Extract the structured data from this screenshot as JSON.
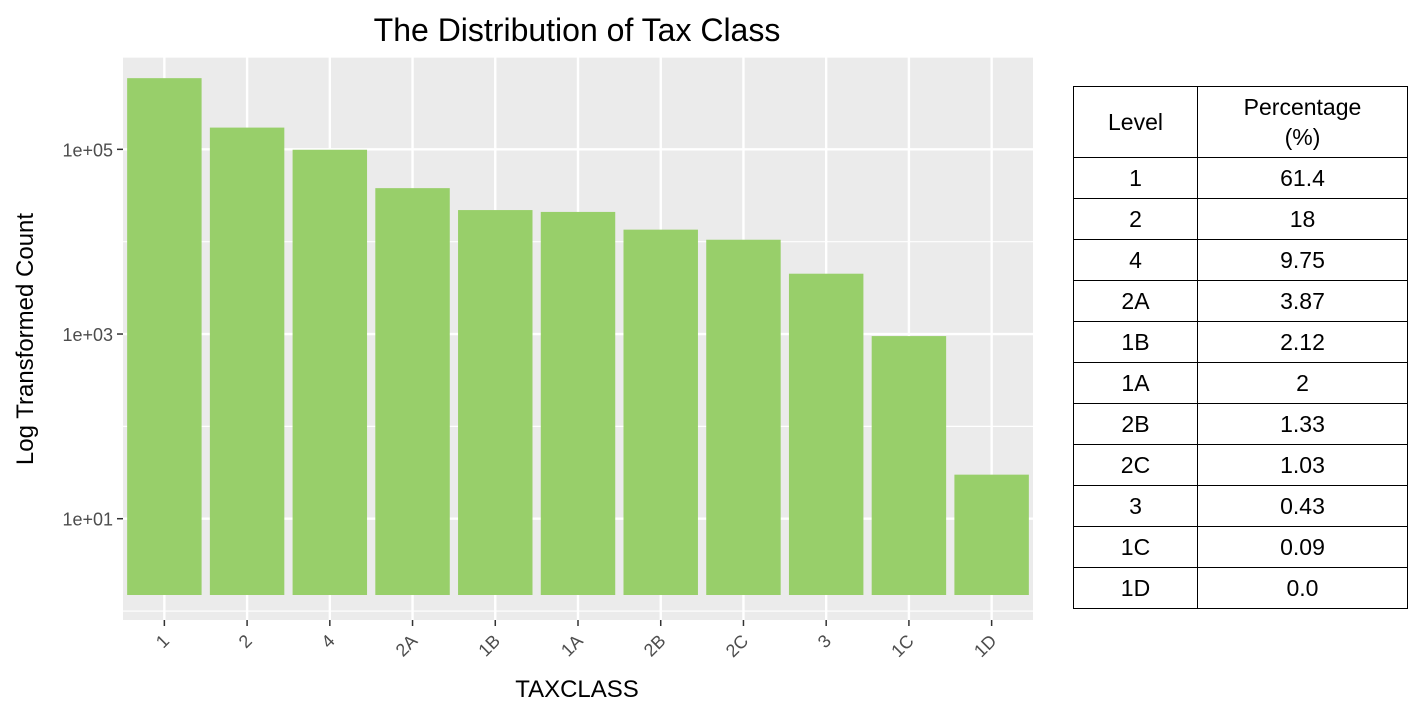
{
  "chart_data": [
    {
      "type": "bar",
      "title": "The Distribution of Tax Class",
      "xlabel": "TAXCLASS",
      "ylabel": "Log Transformed Count",
      "yscale": "log10",
      "ylim": [
        0.8,
        1000000
      ],
      "yticks": [
        10,
        1000,
        100000
      ],
      "ytick_labels": [
        "1e+01",
        "1e+03",
        "1e+05"
      ],
      "categories": [
        "1",
        "2",
        "4",
        "2A",
        "1B",
        "1A",
        "2B",
        "2C",
        "3",
        "1C",
        "1D"
      ],
      "values": [
        590000,
        172000,
        99000,
        38000,
        22000,
        21000,
        13500,
        10500,
        4500,
        950,
        30
      ],
      "bar_color": "#98cf6a",
      "panel_color": "#ebebeb",
      "grid": true,
      "legend": "none"
    },
    {
      "type": "table",
      "columns": [
        "Level",
        "Percentage\n(%)"
      ],
      "rows": [
        [
          "1",
          "61.4"
        ],
        [
          "2",
          "18"
        ],
        [
          "4",
          "9.75"
        ],
        [
          "2A",
          "3.87"
        ],
        [
          "1B",
          "2.12"
        ],
        [
          "1A",
          "2"
        ],
        [
          "2B",
          "1.33"
        ],
        [
          "2C",
          "1.03"
        ],
        [
          "3",
          "0.43"
        ],
        [
          "1C",
          "0.09"
        ],
        [
          "1D",
          "0.0"
        ]
      ]
    }
  ]
}
